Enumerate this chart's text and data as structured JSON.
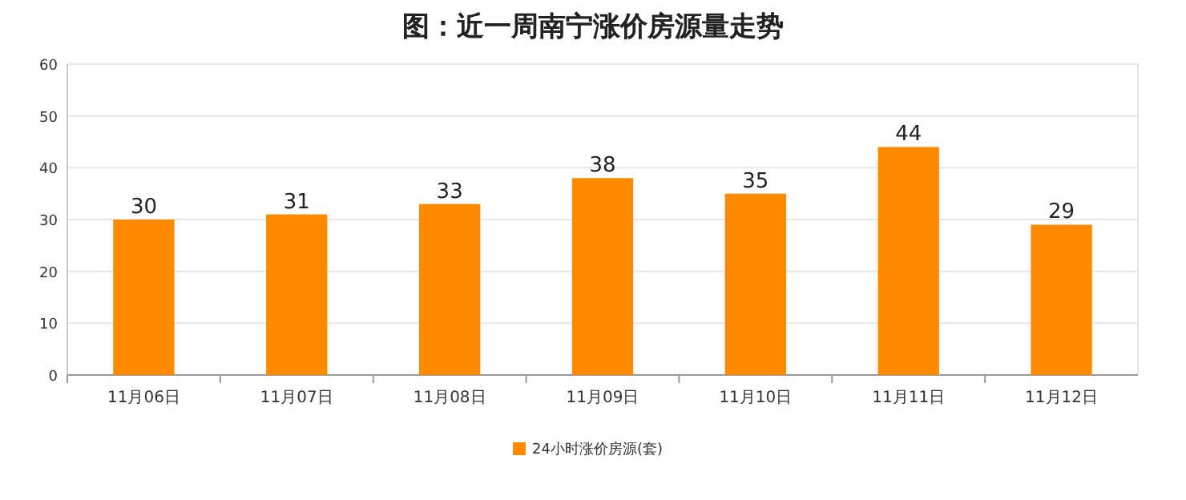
{
  "chart_data": {
    "type": "bar",
    "title": "图：近一周南宁涨价房源量走势",
    "categories": [
      "11月06日",
      "11月07日",
      "11月08日",
      "11月09日",
      "11月10日",
      "11月11日",
      "11月12日"
    ],
    "series": [
      {
        "name": "24小时涨价房源(套)",
        "color": "#ff8a00",
        "values": [
          30,
          31,
          33,
          38,
          35,
          44,
          29
        ]
      }
    ],
    "ylim": [
      0,
      60
    ],
    "yticks": [
      0,
      10,
      20,
      30,
      40,
      50,
      60
    ],
    "grid": "y",
    "legend": "bottom",
    "data_labels": true
  }
}
